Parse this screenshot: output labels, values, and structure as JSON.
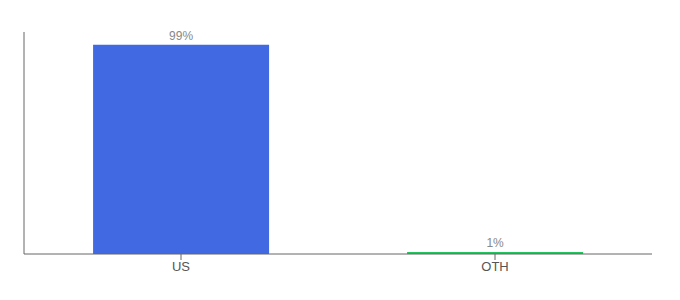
{
  "chart_data": {
    "type": "bar",
    "categories": [
      "US",
      "OTH"
    ],
    "values": [
      99,
      1
    ],
    "value_labels": [
      "99%",
      "1%"
    ],
    "colors": [
      "#4169E1",
      "#22C55E"
    ],
    "ylim": [
      0,
      105
    ],
    "data_labels": true,
    "tick_labels": "x"
  }
}
